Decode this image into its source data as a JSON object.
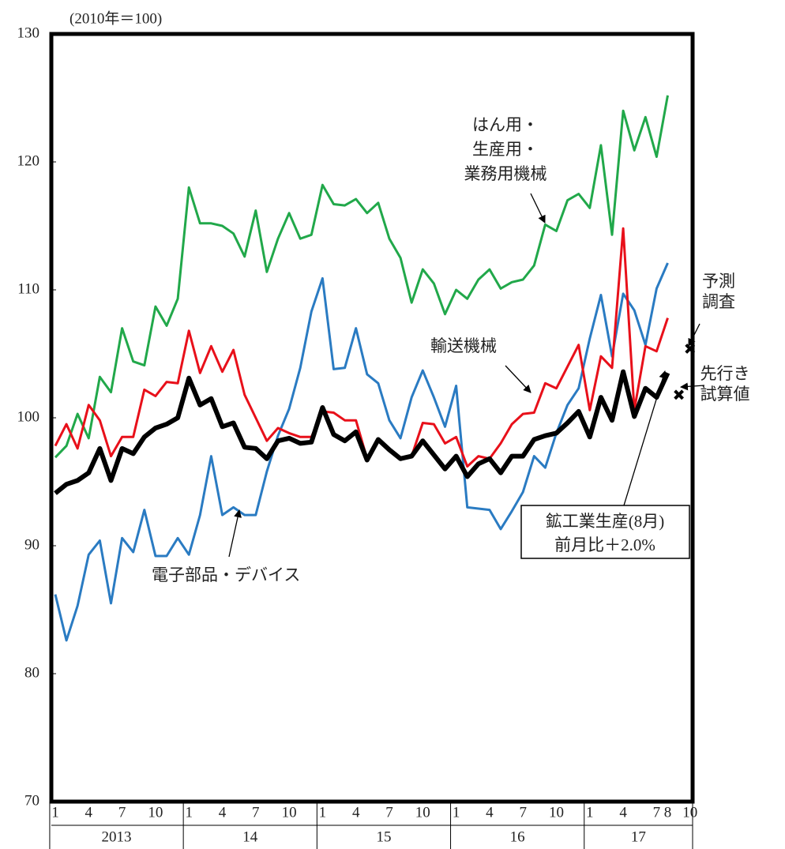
{
  "chart_data": {
    "type": "line",
    "unit_note": "(2010年＝100)",
    "categories": [
      "1",
      null,
      null,
      "4",
      null,
      null,
      "7",
      null,
      null,
      "10",
      null,
      null,
      "1",
      null,
      null,
      "4",
      null,
      null,
      "7",
      null,
      null,
      "10",
      null,
      null,
      "1",
      null,
      null,
      "4",
      null,
      null,
      "7",
      null,
      null,
      "10",
      null,
      null,
      "1",
      null,
      null,
      "4",
      null,
      null,
      "7",
      null,
      null,
      "10",
      null,
      null,
      "1",
      null,
      null,
      "4",
      null,
      null,
      "7",
      "8",
      null,
      "10"
    ],
    "year_groups": [
      "2013",
      "14",
      "15",
      "16",
      "17"
    ],
    "ylim": [
      70,
      130
    ],
    "yticks": [
      70,
      80,
      90,
      100,
      110,
      120,
      130
    ],
    "series": [
      {
        "name_lines": [
          "はん用・",
          "生産用・",
          "業務用機械"
        ],
        "color": "#21a84a",
        "line_width": 3,
        "values": [
          96.9,
          97.8,
          100.3,
          98.4,
          103.2,
          102.0,
          107.0,
          104.4,
          104.1,
          108.7,
          107.2,
          109.3,
          118.0,
          115.2,
          115.2,
          115.0,
          114.4,
          112.6,
          116.2,
          111.4,
          114.0,
          116.0,
          114.0,
          114.3,
          118.2,
          116.7,
          116.6,
          117.1,
          116.0,
          116.8,
          114.0,
          112.5,
          109.0,
          111.6,
          110.5,
          108.1,
          110.0,
          109.3,
          110.8,
          111.6,
          110.1,
          110.6,
          110.8,
          111.9,
          115.1,
          114.6,
          117.0,
          117.5,
          116.4,
          121.3,
          114.3,
          124.0,
          120.9,
          123.5,
          120.4,
          125.2,
          null,
          null
        ]
      },
      {
        "name_lines": [
          "電子部品・デバイス"
        ],
        "color": "#2a7bc2",
        "line_width": 3,
        "values": [
          86.2,
          82.6,
          85.3,
          89.3,
          90.4,
          85.5,
          90.6,
          89.5,
          92.8,
          89.2,
          89.2,
          90.6,
          89.3,
          92.4,
          97.0,
          92.4,
          93.0,
          92.4,
          92.4,
          95.8,
          98.6,
          100.7,
          103.9,
          108.3,
          110.9,
          103.8,
          103.9,
          107.0,
          103.4,
          102.7,
          99.8,
          98.4,
          101.6,
          103.7,
          101.6,
          99.3,
          102.5,
          93.0,
          92.9,
          92.8,
          91.3,
          92.7,
          94.2,
          97.0,
          96.1,
          98.8,
          101.0,
          102.3,
          106.2,
          109.6,
          104.8,
          109.7,
          108.4,
          105.7,
          110.1,
          112.1,
          null,
          null
        ]
      },
      {
        "name_lines": [
          "輸送機械"
        ],
        "color": "#e8101a",
        "line_width": 3,
        "values": [
          97.8,
          99.5,
          97.6,
          101.0,
          99.8,
          97.0,
          98.5,
          98.5,
          102.2,
          101.7,
          102.8,
          102.7,
          106.8,
          103.5,
          105.6,
          103.6,
          105.3,
          101.8,
          100.0,
          98.2,
          99.2,
          98.8,
          98.5,
          98.5,
          100.5,
          100.4,
          99.8,
          99.8,
          96.8,
          98.3,
          97.5,
          96.8,
          97.0,
          99.6,
          99.5,
          98.0,
          98.5,
          96.2,
          97.0,
          96.8,
          98.0,
          99.5,
          100.3,
          100.4,
          102.7,
          102.3,
          104.0,
          105.7,
          100.6,
          104.8,
          103.9,
          114.8,
          100.6,
          105.6,
          105.2,
          107.8,
          null,
          null
        ]
      },
      {
        "name_lines": [
          "鉱工業生産(8月)",
          "前月比＋2.0%"
        ],
        "color": "#000000",
        "line_width": 6,
        "values": [
          94.1,
          94.8,
          95.1,
          95.7,
          97.6,
          95.1,
          97.6,
          97.2,
          98.5,
          99.2,
          99.5,
          100.0,
          103.1,
          101.0,
          101.5,
          99.3,
          99.6,
          97.7,
          97.6,
          96.8,
          98.2,
          98.4,
          98.0,
          98.1,
          100.8,
          98.7,
          98.2,
          98.9,
          96.7,
          98.3,
          97.5,
          96.8,
          97.0,
          98.2,
          97.1,
          96.0,
          97.0,
          95.4,
          96.4,
          96.8,
          95.7,
          97.0,
          97.0,
          98.3,
          98.6,
          98.8,
          99.6,
          100.5,
          98.5,
          101.6,
          99.8,
          103.6,
          100.1,
          102.3,
          101.6,
          103.5,
          null,
          null
        ]
      },
      {
        "name_lines": [
          "予測",
          "調査"
        ],
        "color": "#000000",
        "marker": true,
        "values": [
          null,
          null,
          null,
          null,
          null,
          null,
          null,
          null,
          null,
          null,
          null,
          null,
          null,
          null,
          null,
          null,
          null,
          null,
          null,
          null,
          null,
          null,
          null,
          null,
          null,
          null,
          null,
          null,
          null,
          null,
          null,
          null,
          null,
          null,
          null,
          null,
          null,
          null,
          null,
          null,
          null,
          null,
          null,
          null,
          null,
          null,
          null,
          null,
          null,
          null,
          null,
          null,
          null,
          null,
          null,
          null,
          null,
          105.4
        ]
      },
      {
        "name_lines": [
          "先行き",
          "試算値"
        ],
        "color": "#000000",
        "marker": true,
        "values": [
          null,
          null,
          null,
          null,
          null,
          null,
          null,
          null,
          null,
          null,
          null,
          null,
          null,
          null,
          null,
          null,
          null,
          null,
          null,
          null,
          null,
          null,
          null,
          null,
          null,
          null,
          null,
          null,
          null,
          null,
          null,
          null,
          null,
          null,
          null,
          null,
          null,
          null,
          null,
          null,
          null,
          null,
          null,
          null,
          null,
          null,
          null,
          null,
          null,
          null,
          null,
          null,
          null,
          null,
          null,
          null,
          101.8,
          null
        ]
      }
    ]
  }
}
